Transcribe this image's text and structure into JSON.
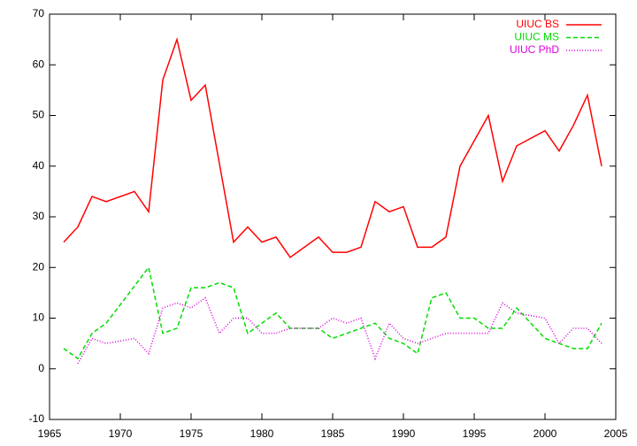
{
  "chart_data": {
    "type": "line",
    "xlim": [
      1965,
      2005
    ],
    "xticks": [
      1965,
      1970,
      1975,
      1980,
      1985,
      1990,
      1995,
      2000,
      2005
    ],
    "ylim": [
      -10,
      70
    ],
    "yticks": [
      -10,
      0,
      10,
      20,
      30,
      40,
      50,
      60,
      70
    ],
    "grid": false,
    "legend": "top-right",
    "series": [
      {
        "name": "UIUC BS",
        "color": "#ff0000",
        "dash": "none",
        "x": [
          1966,
          1967,
          1968,
          1969,
          1971,
          1972,
          1973,
          1974,
          1975,
          1976,
          1978,
          1979,
          1980,
          1981,
          1982,
          1984,
          1985,
          1986,
          1987,
          1988,
          1989,
          1990,
          1991,
          1992,
          1993,
          1994,
          1996,
          1997,
          1998,
          2000,
          2001,
          2002,
          2003,
          2004
        ],
        "values": [
          25,
          28,
          34,
          33,
          35,
          31,
          57,
          65,
          53,
          56,
          25,
          28,
          25,
          26,
          22,
          26,
          23,
          23,
          24,
          33,
          31,
          32,
          24,
          24,
          26,
          40,
          50,
          37,
          44,
          47,
          43,
          48,
          54,
          40
        ]
      },
      {
        "name": "UIUC MS",
        "color": "#00dd00",
        "dash": "5,3",
        "x": [
          1966,
          1967,
          1968,
          1969,
          1972,
          1973,
          1974,
          1975,
          1976,
          1977,
          1978,
          1979,
          1981,
          1982,
          1984,
          1985,
          1988,
          1989,
          1990,
          1991,
          1992,
          1993,
          1994,
          1995,
          1996,
          1997,
          1998,
          2000,
          2002,
          2003,
          2004
        ],
        "values": [
          4,
          2,
          7,
          9,
          20,
          7,
          8,
          16,
          16,
          17,
          16,
          7,
          11,
          8,
          8,
          6,
          9,
          6,
          5,
          3,
          14,
          15,
          10,
          10,
          8,
          8,
          12,
          6,
          4,
          4,
          9
        ]
      },
      {
        "name": "UIUC PhD",
        "color": "#dd00dd",
        "dash": "1,2",
        "x": [
          1967,
          1968,
          1969,
          1971,
          1972,
          1973,
          1974,
          1975,
          1976,
          1977,
          1978,
          1979,
          1980,
          1981,
          1982,
          1984,
          1985,
          1986,
          1987,
          1988,
          1989,
          1990,
          1991,
          1992,
          1993,
          1996,
          1997,
          1998,
          2000,
          2001,
          2002,
          2003,
          2004
        ],
        "values": [
          1,
          6,
          5,
          6,
          3,
          12,
          13,
          12,
          14,
          7,
          10,
          10,
          7,
          7,
          8,
          8,
          10,
          9,
          10,
          2,
          9,
          6,
          5,
          6,
          7,
          7,
          13,
          11,
          10,
          5,
          8,
          8,
          5
        ]
      }
    ]
  }
}
